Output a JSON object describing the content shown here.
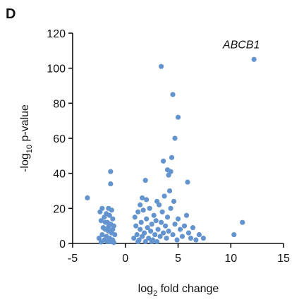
{
  "panel_label": "D",
  "chart_data": {
    "type": "scatter",
    "xlabel": [
      "log",
      "2",
      " fold change"
    ],
    "ylabel": [
      "-log",
      "10",
      " p-value"
    ],
    "xlim": [
      -5,
      15
    ],
    "xticks": [
      -5,
      0,
      5,
      10,
      15
    ],
    "ylim": [
      0,
      120
    ],
    "yticks": [
      0,
      20,
      40,
      60,
      80,
      100,
      120
    ],
    "grid": false,
    "series": [
      {
        "color": "#6494cf",
        "x": [
          -3.6,
          -1.4,
          -1.4,
          3.4,
          4.5,
          5.0,
          4.7,
          4.4,
          3.6,
          4.0,
          4.3,
          4.1,
          5.9,
          4.2,
          3.7,
          4.6,
          12.2,
          11.1,
          10.3,
          1.9,
          -2.4,
          -2.2,
          -1.6,
          -1.3,
          -1.8,
          -2.0,
          -1.5,
          -1.2,
          -2.3,
          -1.7,
          -1.4,
          -1.1,
          -2.1,
          -1.9,
          -1.6,
          -1.3,
          -1.0,
          -2.2,
          -1.8,
          -1.5,
          -1.2,
          -2.0,
          -1.7,
          -1.4,
          -1.1,
          -2.3,
          -1.9,
          -1.2,
          -1.6,
          -2.5,
          0.9,
          1.0,
          1.1,
          1.2,
          1.3,
          1.4,
          1.5,
          1.6,
          1.7,
          1.8,
          1.9,
          2.0,
          2.1,
          2.2,
          2.3,
          2.4,
          2.5,
          2.6,
          2.7,
          2.8,
          2.9,
          3.0,
          3.1,
          3.2,
          3.3,
          3.4,
          3.5,
          3.6,
          3.8,
          3.9,
          4.0,
          4.1,
          4.3,
          4.5,
          4.7,
          4.9,
          5.0,
          5.2,
          5.4,
          5.6,
          5.8,
          6.0,
          6.2,
          6.4,
          6.7,
          7.0,
          7.4,
          1.6,
          2.0,
          3.0,
          2.5,
          1.2,
          0.8,
          1.4
        ],
        "values": [
          26,
          41,
          34,
          101,
          85,
          72,
          60,
          49,
          47,
          42,
          41,
          39,
          35,
          30,
          27,
          24,
          105,
          12,
          5,
          36,
          18,
          20,
          20,
          19,
          17,
          15,
          16,
          14,
          13,
          12,
          11,
          10,
          9,
          8,
          7,
          6,
          5,
          5,
          4,
          3,
          2,
          2,
          1,
          1,
          0.5,
          0.8,
          12,
          8,
          9.5,
          3,
          15,
          10,
          5,
          18,
          2,
          8,
          12,
          4,
          19,
          6,
          1,
          14,
          9,
          3,
          20,
          7,
          11,
          2,
          16,
          5,
          13,
          1,
          8,
          22,
          4,
          12,
          18,
          6,
          10,
          3,
          15,
          7,
          20,
          5,
          11,
          2,
          14,
          8,
          4,
          10,
          16,
          6,
          3,
          9,
          2,
          5,
          3,
          26,
          25,
          24,
          1,
          1,
          3,
          22
        ]
      }
    ],
    "annotations": [
      {
        "text": "ABCB1",
        "x": 12.2,
        "y": 105
      }
    ]
  }
}
